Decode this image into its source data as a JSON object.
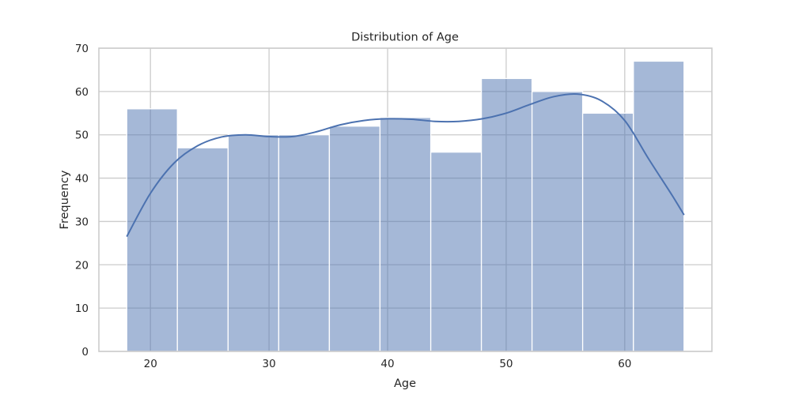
{
  "chart_data": {
    "type": "histogram",
    "title": "Distribution of Age",
    "xlabel": "Age",
    "ylabel": "Frequency",
    "xlim": [
      15.65,
      67.35
    ],
    "ylim": [
      0,
      70
    ],
    "xticks": [
      20,
      30,
      40,
      50,
      60
    ],
    "yticks": [
      0,
      10,
      20,
      30,
      40,
      50,
      60,
      70
    ],
    "grid": true,
    "bins": [
      {
        "start": 18.0,
        "end": 22.27,
        "count": 56
      },
      {
        "start": 22.27,
        "end": 26.55,
        "count": 47
      },
      {
        "start": 26.55,
        "end": 30.82,
        "count": 50
      },
      {
        "start": 30.82,
        "end": 35.09,
        "count": 50
      },
      {
        "start": 35.09,
        "end": 39.36,
        "count": 52
      },
      {
        "start": 39.36,
        "end": 43.64,
        "count": 54
      },
      {
        "start": 43.64,
        "end": 47.91,
        "count": 46
      },
      {
        "start": 47.91,
        "end": 52.18,
        "count": 63
      },
      {
        "start": 52.18,
        "end": 56.45,
        "count": 60
      },
      {
        "start": 56.45,
        "end": 60.73,
        "count": 55
      },
      {
        "start": 60.73,
        "end": 65.0,
        "count": 67
      }
    ],
    "kde": {
      "x": [
        18,
        20,
        22,
        24,
        26,
        28,
        30,
        32,
        34,
        36,
        38,
        40,
        42,
        44,
        46,
        48,
        50,
        52,
        54,
        56,
        58,
        60,
        62,
        64,
        65
      ],
      "y": [
        26.5,
        36.5,
        43.5,
        47.5,
        49.5,
        50.0,
        49.6,
        49.6,
        50.7,
        52.3,
        53.3,
        53.7,
        53.6,
        53.1,
        53.1,
        53.7,
        55.0,
        57.0,
        58.8,
        59.4,
        57.9,
        53.3,
        44.5,
        36.0,
        31.5
      ]
    },
    "colors": {
      "bar_fill": "#4c72b0",
      "bar_fill_opacity": 0.5,
      "bar_edge": "#ffffff",
      "kde_line": "#4c72b0",
      "grid": "#cccccc",
      "frame": "#cccccc"
    }
  }
}
